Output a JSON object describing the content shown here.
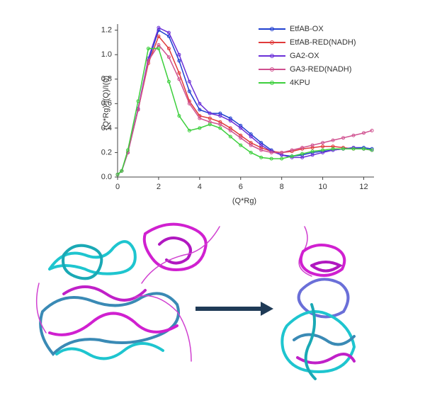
{
  "chart_data": {
    "type": "line",
    "xlabel": "(Q*Rg)",
    "ylabel": "(Q*Rg)²I(Q)/I(0)",
    "x": [
      0,
      0.2,
      0.5,
      1,
      1.5,
      2,
      2.5,
      3,
      3.5,
      4,
      4.5,
      5,
      5.5,
      6,
      6.5,
      7,
      7.5,
      8,
      8.5,
      9,
      9.5,
      10,
      10.5,
      11,
      11.5,
      12,
      12.4
    ],
    "xlim": [
      0,
      12.5
    ],
    "ylim": [
      0,
      1.25
    ],
    "xticks": [
      0,
      2,
      4,
      6,
      8,
      10,
      12
    ],
    "yticks": [
      {
        "value": 0,
        "label": "0.0"
      },
      0.2,
      0.4,
      0.6,
      0.8,
      {
        "value": 1,
        "label": "1.0"
      },
      1.2
    ],
    "legend": "upper right",
    "series": [
      {
        "name": "EtfAB-OX",
        "color": "#1f3fd0",
        "values": [
          0.02,
          0.05,
          0.2,
          0.55,
          0.95,
          1.2,
          1.15,
          0.95,
          0.7,
          0.55,
          0.52,
          0.52,
          0.48,
          0.42,
          0.35,
          0.28,
          0.22,
          0.18,
          0.17,
          0.18,
          0.2,
          0.21,
          0.22,
          0.23,
          0.24,
          0.24,
          0.23
        ]
      },
      {
        "name": "EtfAB-RED(NADH)",
        "color": "#e03a3a",
        "values": [
          0.02,
          0.05,
          0.2,
          0.55,
          0.93,
          1.15,
          1.05,
          0.85,
          0.62,
          0.5,
          0.48,
          0.45,
          0.4,
          0.34,
          0.28,
          0.24,
          0.21,
          0.2,
          0.21,
          0.23,
          0.24,
          0.25,
          0.25,
          0.24,
          0.23,
          0.23,
          0.22
        ]
      },
      {
        "name": "GA2-OX",
        "color": "#6a2fd8",
        "values": [
          0.02,
          0.05,
          0.2,
          0.56,
          0.97,
          1.22,
          1.18,
          1.0,
          0.78,
          0.6,
          0.52,
          0.5,
          0.46,
          0.4,
          0.33,
          0.26,
          0.21,
          0.18,
          0.16,
          0.16,
          0.18,
          0.2,
          0.22,
          0.23,
          0.24,
          0.23,
          0.22
        ]
      },
      {
        "name": "GA3-RED(NADH)",
        "color": "#d0508f",
        "values": [
          0.02,
          0.05,
          0.2,
          0.55,
          0.95,
          1.08,
          0.98,
          0.8,
          0.6,
          0.48,
          0.45,
          0.43,
          0.38,
          0.32,
          0.26,
          0.22,
          0.2,
          0.2,
          0.22,
          0.24,
          0.26,
          0.28,
          0.3,
          0.32,
          0.34,
          0.36,
          0.38
        ]
      },
      {
        "name": "4KPU",
        "color": "#3ccf3c",
        "values": [
          0.02,
          0.05,
          0.22,
          0.62,
          1.05,
          1.05,
          0.78,
          0.5,
          0.38,
          0.4,
          0.43,
          0.4,
          0.33,
          0.26,
          0.2,
          0.16,
          0.15,
          0.15,
          0.17,
          0.19,
          0.21,
          0.22,
          0.23,
          0.23,
          0.23,
          0.23,
          0.22
        ]
      }
    ]
  }
}
